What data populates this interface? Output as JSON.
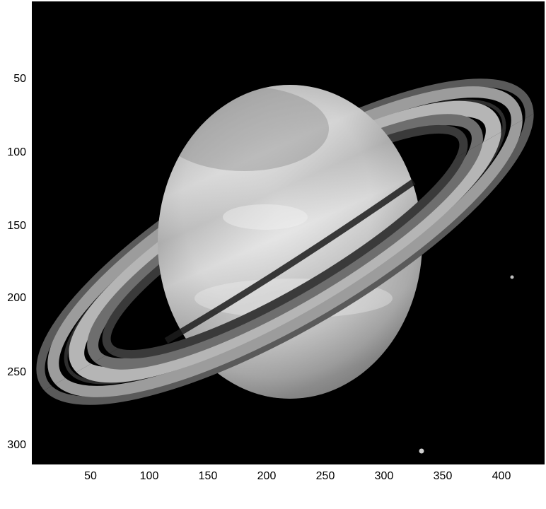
{
  "image": {
    "subject": "saturn-planet-with-rings",
    "colormap": "grayscale",
    "background_color": "#000000"
  },
  "axes": {
    "x_ticks": [
      "50",
      "100",
      "150",
      "200",
      "250",
      "300",
      "350",
      "400"
    ],
    "y_ticks": [
      "50",
      "100",
      "150",
      "200",
      "250",
      "300"
    ]
  }
}
